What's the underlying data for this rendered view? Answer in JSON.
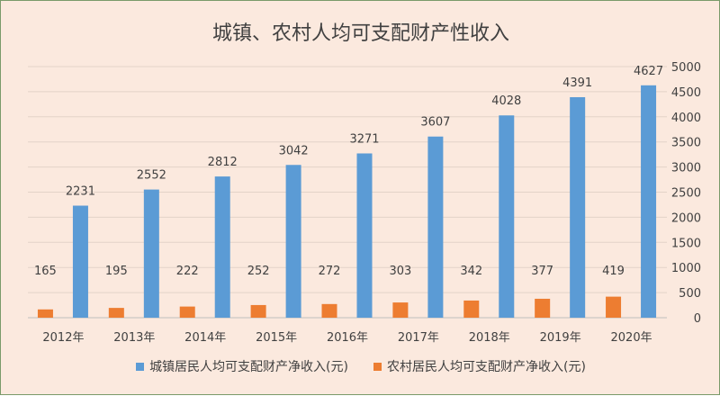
{
  "chart_data": {
    "type": "bar",
    "title": "城镇、农村人均可支配财产性收入",
    "categories": [
      "2012年",
      "2013年",
      "2014年",
      "2015年",
      "2016年",
      "2017年",
      "2018年",
      "2019年",
      "2020年"
    ],
    "series": [
      {
        "name": "城镇居民人均可支配财产净收入(元)",
        "color": "#5b9bd5",
        "axis": "right",
        "values": [
          2231,
          2552,
          2812,
          3042,
          3271,
          3607,
          4028,
          4391,
          4627
        ]
      },
      {
        "name": "农村居民人均可支配财产净收入(元)",
        "color": "#ed7d31",
        "axis": "left",
        "values": [
          165,
          195,
          222,
          252,
          272,
          303,
          342,
          377,
          419
        ]
      }
    ],
    "y_right": {
      "ylim": [
        0,
        5000
      ],
      "ticks": [
        0,
        500,
        1000,
        1500,
        2000,
        2500,
        3000,
        3500,
        4000,
        4500,
        5000
      ]
    },
    "y_left": {
      "ylim": [
        0,
        5000
      ]
    },
    "grid": true,
    "legend_position": "bottom"
  }
}
